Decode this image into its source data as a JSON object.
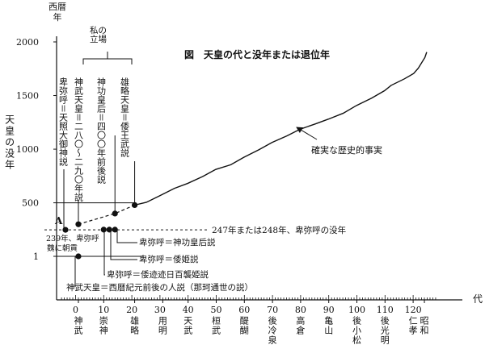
{
  "chart_data": {
    "type": "line",
    "title": "図　天皇の代と没年または退位年",
    "ylabel_top": "西暦年",
    "ylabel_side": "天皇の没年",
    "xunit": "代",
    "xlim": [
      -10,
      130
    ],
    "ylim": [
      0,
      2000
    ],
    "y_ticks": [
      1,
      500,
      1000,
      1500,
      2000
    ],
    "x_ticks": [
      0,
      10,
      20,
      30,
      40,
      50,
      60,
      70,
      80,
      90,
      100,
      110,
      120
    ],
    "emperor_labels": [
      {
        "n": 1,
        "name": "神武"
      },
      {
        "n": 10,
        "name": "崇神"
      },
      {
        "n": 21,
        "name": "雄略"
      },
      {
        "n": 31,
        "name": "用明"
      },
      {
        "n": 40,
        "name": "天武"
      },
      {
        "n": 50,
        "name": "桓武"
      },
      {
        "n": 60,
        "name": "醍醐"
      },
      {
        "n": 70,
        "name": "後冷泉"
      },
      {
        "n": 80,
        "name": "高倉"
      },
      {
        "n": 90,
        "name": "亀山"
      },
      {
        "n": 100,
        "name": "後小松"
      },
      {
        "n": 110,
        "name": "後光明"
      },
      {
        "n": 120,
        "name": "仁孝"
      },
      {
        "n": 124,
        "name": "昭和"
      }
    ],
    "historical_curve": [
      [
        21,
        479
      ],
      [
        25,
        510
      ],
      [
        30,
        570
      ],
      [
        35,
        630
      ],
      [
        40,
        686
      ],
      [
        45,
        750
      ],
      [
        50,
        806
      ],
      [
        55,
        860
      ],
      [
        60,
        930
      ],
      [
        65,
        990
      ],
      [
        70,
        1068
      ],
      [
        75,
        1130
      ],
      [
        80,
        1181
      ],
      [
        85,
        1240
      ],
      [
        90,
        1285
      ],
      [
        95,
        1330
      ],
      [
        100,
        1412
      ],
      [
        105,
        1480
      ],
      [
        110,
        1540
      ],
      [
        112,
        1600
      ],
      [
        117,
        1660
      ],
      [
        120,
        1700
      ],
      [
        122,
        1760
      ],
      [
        124,
        1860
      ],
      [
        125,
        1900
      ]
    ],
    "dashed_segment": [
      [
        1,
        300
      ],
      [
        14,
        400
      ],
      [
        21,
        479
      ]
    ],
    "points": [
      {
        "n": 0,
        "y": 248,
        "name": "A"
      },
      {
        "n": 1,
        "y": 300
      },
      {
        "n": 10,
        "y": 250
      },
      {
        "n": 12,
        "y": 250
      },
      {
        "n": 14,
        "y": 250
      },
      {
        "n": 14,
        "y": 400
      },
      {
        "n": 21,
        "y": 479
      },
      {
        "n": 1,
        "y": 1
      }
    ],
    "ref_lines": {
      "y500": 500,
      "y1": 1,
      "y248": 248
    }
  },
  "labels": {
    "my_position": "私の立場",
    "col_hime": "卑弥呼＝天照大御神説",
    "col_jimmu": "神武天皇＝二八〇〜二九〇年説",
    "col_kogo": "神功皇后＝四〇〇年前後説",
    "col_yuryaku": "雄略天皇＝倭王武説",
    "point_a": "A",
    "tribute_1": "239年、卑弥呼",
    "tribute_2": "魏に朝貢",
    "himiko_death": "247年または248年、卑弥呼の没年",
    "h1": "卑弥呼＝神功皇后説",
    "h2": "卑弥呼＝倭姫説",
    "h3": "卑弥呼＝倭迹迹日百襲姫説",
    "bottom": "神武天皇＝西暦紀元前後の人説（那珂通世の説）",
    "historic_fact": "確実な歴史的事実"
  }
}
